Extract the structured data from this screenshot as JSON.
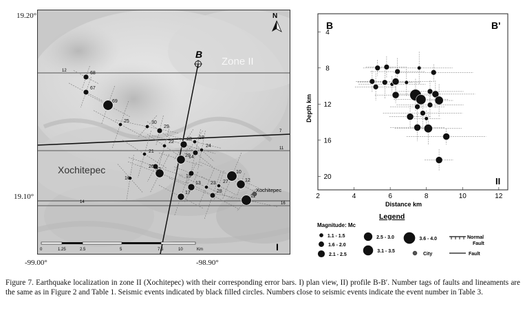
{
  "map": {
    "lat_top": "19.20°",
    "lat_bottom": "19.10°",
    "lon_left": "-99.00°",
    "lon_right": "-98.90°",
    "north": "N",
    "section_start": "B",
    "section_end": "B'",
    "zone_label": "Zone II",
    "town_label": "Xochitepec",
    "town_small": "Xochitepec",
    "panel_numeral": "I",
    "scale_labels": [
      "0",
      "1.25",
      "2.5",
      "5",
      "7.5",
      "10",
      "Km"
    ],
    "lineaments": [
      "12",
      "7",
      "11",
      "14",
      "16"
    ],
    "events": [
      {
        "n": "68",
        "mag": 1.8
      },
      {
        "n": "67",
        "mag": 1.8
      },
      {
        "n": "69",
        "mag": 3.3
      },
      {
        "n": "25",
        "mag": 1.3
      },
      {
        "n": "30",
        "mag": 1.3
      },
      {
        "n": "29",
        "mag": 1.8
      },
      {
        "n": "22",
        "mag": 1.3
      },
      {
        "n": "21",
        "mag": 1.3
      },
      {
        "n": "19",
        "mag": 1.3
      },
      {
        "n": "18",
        "mag": 2.3
      },
      {
        "n": "24",
        "mag": 1.3
      },
      {
        "n": "14",
        "mag": 1.8
      },
      {
        "n": "20",
        "mag": 2.8
      },
      {
        "n": "26",
        "mag": 1.8
      },
      {
        "n": "32",
        "mag": 2.8
      },
      {
        "n": "16",
        "mag": 1.3
      },
      {
        "n": "15",
        "mag": 1.8
      },
      {
        "n": "13",
        "mag": 2.3
      },
      {
        "n": "23",
        "mag": 1.3
      },
      {
        "n": "10",
        "mag": 3.3
      },
      {
        "n": "12",
        "mag": 2.8
      },
      {
        "n": "27",
        "mag": 1.3
      },
      {
        "n": "17",
        "mag": 2.3
      },
      {
        "n": "28",
        "mag": 1.8
      },
      {
        "n": "11",
        "mag": 3.3
      }
    ]
  },
  "profile": {
    "left_label": "B",
    "right_label": "B'",
    "panel_numeral": "II",
    "y_title": "Depth km",
    "x_title": "Distance km",
    "y_ticks": [
      "4",
      "8",
      "12",
      "16",
      "20"
    ],
    "x_ticks": [
      "2",
      "4",
      "6",
      "8",
      "10",
      "12"
    ],
    "xlim": [
      2,
      12.5
    ],
    "ylim": [
      2,
      21.5
    ],
    "events": [
      {
        "x": 5.3,
        "y": 8.0,
        "mag": 1.8
      },
      {
        "x": 5.8,
        "y": 7.9,
        "mag": 1.8
      },
      {
        "x": 6.4,
        "y": 8.4,
        "mag": 1.8
      },
      {
        "x": 7.6,
        "y": 8.0,
        "mag": 1.3
      },
      {
        "x": 8.4,
        "y": 8.5,
        "mag": 1.8
      },
      {
        "x": 5.0,
        "y": 9.5,
        "mag": 1.8
      },
      {
        "x": 5.2,
        "y": 10.1,
        "mag": 1.8
      },
      {
        "x": 5.7,
        "y": 9.6,
        "mag": 1.8
      },
      {
        "x": 6.1,
        "y": 9.8,
        "mag": 1.3
      },
      {
        "x": 6.3,
        "y": 9.5,
        "mag": 2.3
      },
      {
        "x": 6.9,
        "y": 9.6,
        "mag": 1.3
      },
      {
        "x": 7.4,
        "y": 11.0,
        "mag": 3.8
      },
      {
        "x": 7.7,
        "y": 11.5,
        "mag": 3.3
      },
      {
        "x": 8.2,
        "y": 10.6,
        "mag": 1.8
      },
      {
        "x": 8.5,
        "y": 10.9,
        "mag": 2.3
      },
      {
        "x": 8.7,
        "y": 11.6,
        "mag": 2.8
      },
      {
        "x": 6.3,
        "y": 11.0,
        "mag": 2.3
      },
      {
        "x": 7.5,
        "y": 12.3,
        "mag": 1.8
      },
      {
        "x": 8.2,
        "y": 12.1,
        "mag": 1.8
      },
      {
        "x": 7.8,
        "y": 13.0,
        "mag": 1.8
      },
      {
        "x": 8.0,
        "y": 13.6,
        "mag": 1.3
      },
      {
        "x": 7.1,
        "y": 13.4,
        "mag": 2.3
      },
      {
        "x": 7.5,
        "y": 14.6,
        "mag": 2.3
      },
      {
        "x": 8.1,
        "y": 14.7,
        "mag": 2.8
      },
      {
        "x": 9.1,
        "y": 15.6,
        "mag": 2.3
      },
      {
        "x": 8.7,
        "y": 18.2,
        "mag": 2.3
      }
    ]
  },
  "legend": {
    "title": "Legend",
    "header": "Magnitude: Mc",
    "items": [
      {
        "label": "1.1 - 1.5",
        "mag": 1.3
      },
      {
        "label": "1.6 - 2.0",
        "mag": 1.8
      },
      {
        "label": "2.1 - 2.5",
        "mag": 2.3
      },
      {
        "label": "2.5 - 3.0",
        "mag": 2.8
      },
      {
        "label": "3.1 - 3.5",
        "mag": 3.3
      },
      {
        "label": "3.6 - 4.0",
        "mag": 3.8
      }
    ],
    "city": "City",
    "normal_fault": "Normal\nFault",
    "normal_fault_1": "Normal",
    "normal_fault_2": "Fault",
    "fault": "Fault"
  },
  "caption": "Figure 7. Earthquake localization in zone II (Xochitepec) with their corresponding error bars. I) plan view, II) profile B-B′. Number tags of faults and lineaments are the same as in Figure 2 and Table 1. Seismic events indicated by black filled circles. Numbers close to seismic events indicate the event number in Table 3."
}
